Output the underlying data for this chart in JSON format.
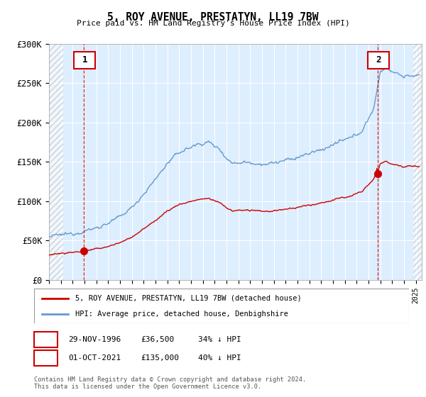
{
  "title": "5, ROY AVENUE, PRESTATYN, LL19 7BW",
  "subtitle": "Price paid vs. HM Land Registry's House Price Index (HPI)",
  "ylim": [
    0,
    300000
  ],
  "xlim_start": 1994.0,
  "xlim_end": 2025.5,
  "yticks": [
    0,
    50000,
    100000,
    150000,
    200000,
    250000,
    300000
  ],
  "ytick_labels": [
    "£0",
    "£50K",
    "£100K",
    "£150K",
    "£200K",
    "£250K",
    "£300K"
  ],
  "sale1_date": 1996.91,
  "sale1_price": 36500,
  "sale2_date": 2021.75,
  "sale2_price": 135000,
  "hpi_color": "#6699cc",
  "price_color": "#cc0000",
  "background_color": "#ddeeff",
  "hatch_left_end": 1995.2,
  "hatch_right_start": 2024.75,
  "legend1": "5, ROY AVENUE, PRESTATYN, LL19 7BW (detached house)",
  "legend2": "HPI: Average price, detached house, Denbighshire",
  "footer": "Contains HM Land Registry data © Crown copyright and database right 2024.\nThis data is licensed under the Open Government Licence v3.0.",
  "table_row1": [
    "1",
    "29-NOV-1996",
    "£36,500",
    "34% ↓ HPI"
  ],
  "table_row2": [
    "2",
    "01-OCT-2021",
    "£135,000",
    "40% ↓ HPI"
  ],
  "hpi_anchors": [
    [
      1994.0,
      55000
    ],
    [
      1995.0,
      57000
    ],
    [
      1996.0,
      59000
    ],
    [
      1997.0,
      62000
    ],
    [
      1998.0,
      66000
    ],
    [
      1999.0,
      72000
    ],
    [
      2000.0,
      80000
    ],
    [
      2001.0,
      92000
    ],
    [
      2002.5,
      118000
    ],
    [
      2004.0,
      148000
    ],
    [
      2005.0,
      162000
    ],
    [
      2006.5,
      172000
    ],
    [
      2007.5,
      175000
    ],
    [
      2008.5,
      165000
    ],
    [
      2009.0,
      155000
    ],
    [
      2009.5,
      148000
    ],
    [
      2010.5,
      150000
    ],
    [
      2011.5,
      148000
    ],
    [
      2012.5,
      147000
    ],
    [
      2013.5,
      150000
    ],
    [
      2014.5,
      153000
    ],
    [
      2015.5,
      158000
    ],
    [
      2016.5,
      163000
    ],
    [
      2017.5,
      168000
    ],
    [
      2018.5,
      175000
    ],
    [
      2019.5,
      180000
    ],
    [
      2020.5,
      190000
    ],
    [
      2021.5,
      220000
    ],
    [
      2022.0,
      265000
    ],
    [
      2022.5,
      270000
    ],
    [
      2023.0,
      265000
    ],
    [
      2023.5,
      262000
    ],
    [
      2024.0,
      258000
    ],
    [
      2024.5,
      260000
    ],
    [
      2025.3,
      258000
    ]
  ]
}
